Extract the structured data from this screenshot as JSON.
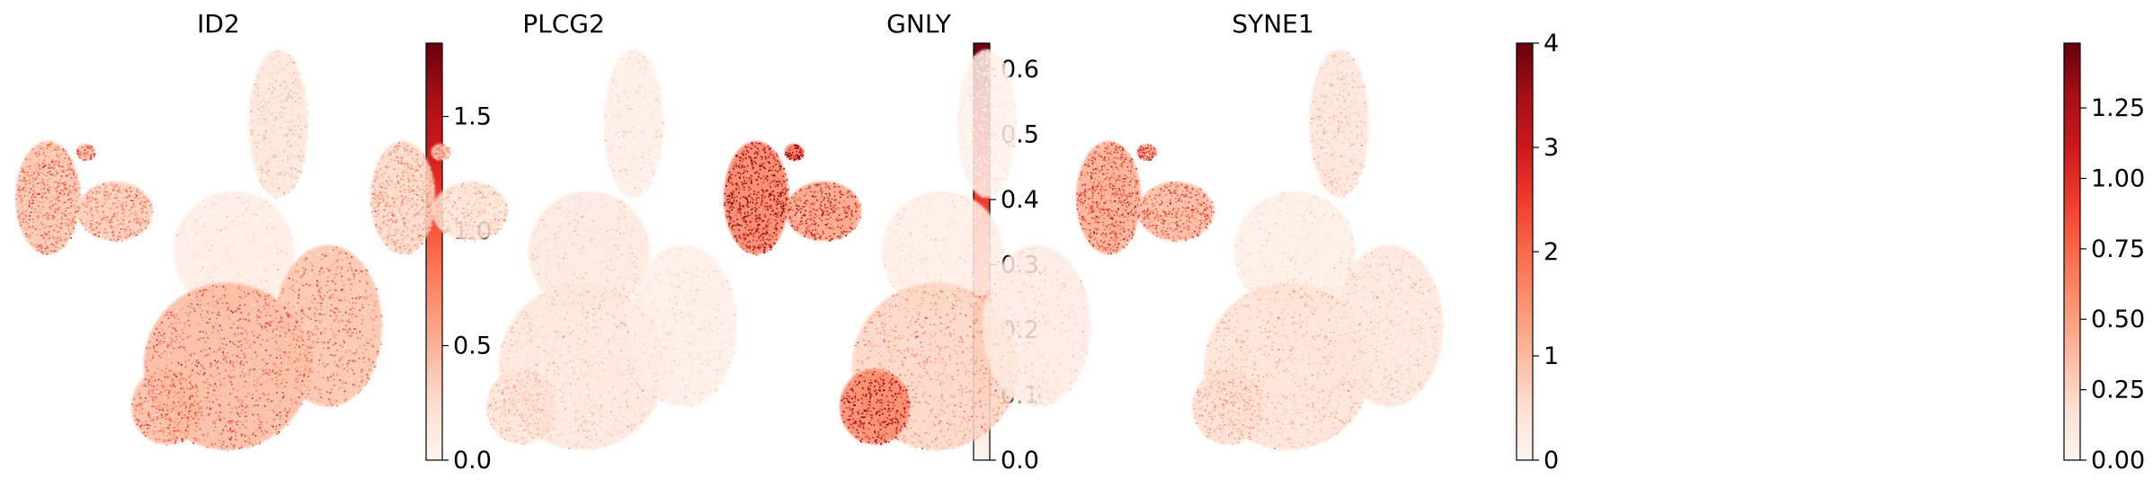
{
  "figure": {
    "type": "umap-feature-plots",
    "colormap": "Reds",
    "colormap_stops": [
      "#fff5f0",
      "#fee0d2",
      "#fcbba1",
      "#fc9272",
      "#fb6a4a",
      "#ef3b2c",
      "#cb181d",
      "#a50f15",
      "#67000d"
    ]
  },
  "chart_data": [
    {
      "type": "scatter",
      "title": "ID2",
      "xlabel": "",
      "ylabel": "",
      "axes_visible": false,
      "colorbar": {
        "vmin": 0.0,
        "vmax": 1.82,
        "ticks": [
          0.0,
          0.5,
          1.0,
          1.5
        ],
        "tick_labels": [
          "0.0",
          "0.5",
          "1.0",
          "1.5"
        ]
      },
      "cluster_expression": {
        "left_blob": 0.75,
        "ear": 0.8,
        "mid_blob": 0.65,
        "top_arm": 0.3,
        "center": 0.15,
        "bottom_body": 0.85,
        "right_lobe": 0.75,
        "lower_left": 0.8
      }
    },
    {
      "type": "scatter",
      "title": "PLCG2",
      "xlabel": "",
      "ylabel": "",
      "axes_visible": false,
      "colorbar": {
        "vmin": 0.0,
        "vmax": 0.64,
        "ticks": [
          0.0,
          0.1,
          0.2,
          0.3,
          0.4,
          0.5,
          0.6
        ],
        "tick_labels": [
          "0.0",
          "0.1",
          "0.2",
          "0.3",
          "0.4",
          "0.5",
          "0.6"
        ]
      },
      "cluster_expression": {
        "left_blob": 0.18,
        "ear": 0.2,
        "mid_blob": 0.12,
        "top_arm": 0.05,
        "center": 0.08,
        "bottom_body": 0.1,
        "right_lobe": 0.05,
        "lower_left": 0.12
      }
    },
    {
      "type": "scatter",
      "title": "GNLY",
      "xlabel": "",
      "ylabel": "",
      "axes_visible": false,
      "colorbar": {
        "vmin": 0,
        "vmax": 4.0,
        "ticks": [
          0,
          1,
          2,
          3,
          4
        ],
        "tick_labels": [
          "0",
          "1",
          "2",
          "3",
          "4"
        ]
      },
      "cluster_expression": {
        "left_blob": 3.2,
        "ear": 3.4,
        "mid_blob": 2.4,
        "top_arm": 0.15,
        "center": 0.3,
        "bottom_body": 1.2,
        "right_lobe": 0.4,
        "lower_left": 3.0
      }
    },
    {
      "type": "scatter",
      "title": "SYNE1",
      "xlabel": "",
      "ylabel": "",
      "axes_visible": false,
      "colorbar": {
        "vmin": 0.0,
        "vmax": 1.48,
        "ticks": [
          0.0,
          0.25,
          0.5,
          0.75,
          1.0,
          1.25
        ],
        "tick_labels": [
          "0.00",
          "0.25",
          "0.50",
          "0.75",
          "1.00",
          "1.25"
        ]
      },
      "cluster_expression": {
        "left_blob": 0.8,
        "ear": 0.85,
        "mid_blob": 0.7,
        "top_arm": 0.25,
        "center": 0.12,
        "bottom_body": 0.3,
        "right_lobe": 0.22,
        "lower_left": 0.35
      }
    }
  ]
}
